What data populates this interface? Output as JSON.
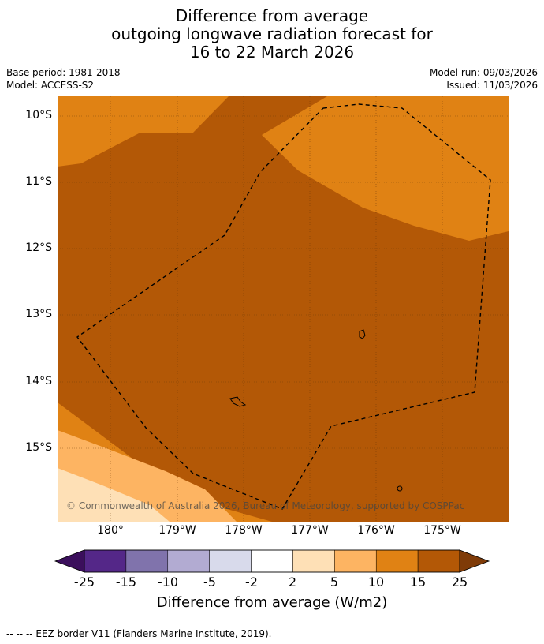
{
  "title": {
    "line1": "Difference from average",
    "line2": "outgoing longwave radiation forecast for",
    "line3": "16 to 22 March 2026"
  },
  "meta": {
    "base_period": "Base period: 1981-2018",
    "model": "Model: ACCESS-S2",
    "model_run": "Model run: 09/03/2026",
    "issued": "Issued: 11/03/2026"
  },
  "map": {
    "lat_labels": [
      "10°S",
      "11°S",
      "12°S",
      "13°S",
      "14°S",
      "15°S"
    ],
    "lon_labels": [
      "180°",
      "179°W",
      "178°W",
      "177°W",
      "176°W",
      "175°W"
    ],
    "copyright": "© Commonwealth of Australia 2026, Bureau of Meteorology, supported by COSPPac",
    "colors": {
      "band_5_10": "#fdb462",
      "band_10_15": "#e08214",
      "band_15_25": "#b35806",
      "band_2_5": "#fee0b6",
      "grid": "#6b3a0a"
    }
  },
  "colorbar": {
    "ticks": [
      "-25",
      "-15",
      "-10",
      "-5",
      "-2",
      "2",
      "5",
      "10",
      "15",
      "25"
    ],
    "colors": [
      "#3b0f5c",
      "#542788",
      "#8073ac",
      "#b2abd2",
      "#d8daeb",
      "#ffffff",
      "#fee0b6",
      "#fdb462",
      "#e08214",
      "#b35806",
      "#7f3b08"
    ],
    "label": "Difference from average (W/m2)"
  },
  "footer": {
    "legend": "--  --  -- EEZ border V11 (Flanders Marine Institute, 2019)."
  }
}
